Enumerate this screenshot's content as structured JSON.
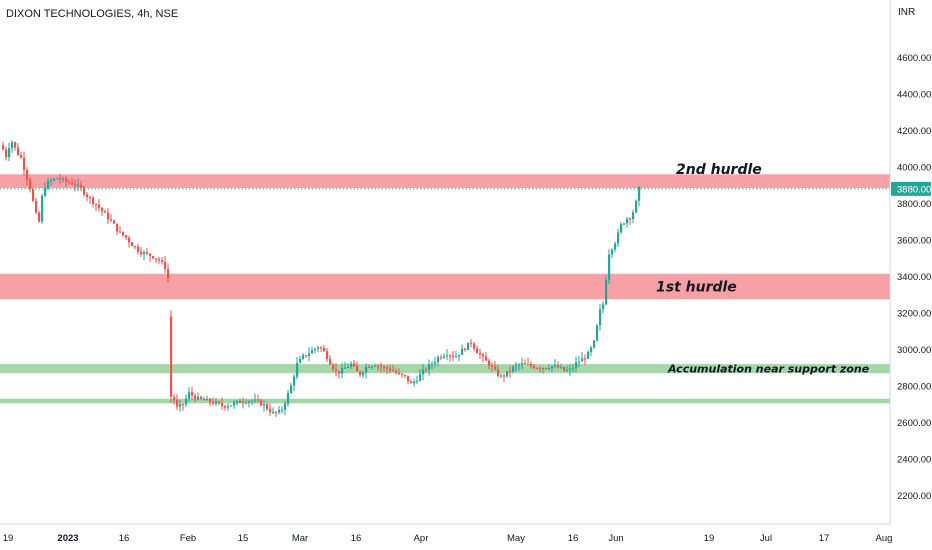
{
  "header": {
    "title": "DIXON TECHNOLOGIES, 4h, NSE"
  },
  "colors": {
    "up": "#26a69a",
    "down": "#ef5350",
    "resistance": "#f7a1a7",
    "support": "#a5d6a7",
    "price_tag": "#26a69a"
  },
  "chart_data": {
    "type": "candlestick",
    "currency": "INR",
    "y_ticks": [
      2200,
      2400,
      2600,
      2800,
      3000,
      3200,
      3400,
      3600,
      3800,
      4000,
      4200,
      4400,
      4600
    ],
    "y_tick_labels": [
      "2200.00",
      "2400.00",
      "2600.00",
      "2800.00",
      "3000.00",
      "3200.00",
      "3400.00",
      "3600.00",
      "3800.00",
      "4000.00",
      "4200.00",
      "4400.00",
      "4600.00"
    ],
    "x_tick_labels": [
      "19",
      "2023",
      "16",
      "Feb",
      "15",
      "Mar",
      "16",
      "Apr",
      "May",
      "16",
      "Jun",
      "19",
      "Jul",
      "17",
      "Aug"
    ],
    "current_price": 3880,
    "current_price_label": "3880.00",
    "zones": [
      {
        "kind": "resistance",
        "from": 3885,
        "to": 3960,
        "label": "2nd hurdle"
      },
      {
        "kind": "resistance",
        "from": 3275,
        "to": 3415,
        "label": "1st hurdle"
      },
      {
        "kind": "support",
        "from": 2870,
        "to": 2920,
        "label": "Accumulation near support zone"
      },
      {
        "kind": "support",
        "from": 2705,
        "to": 2730,
        "label": ""
      }
    ],
    "price_path": [
      [
        0,
        4120
      ],
      [
        5,
        4060
      ],
      [
        10,
        4150
      ],
      [
        16,
        4080
      ],
      [
        20,
        4050
      ],
      [
        26,
        3940
      ],
      [
        30,
        3870
      ],
      [
        34,
        3750
      ],
      [
        38,
        3700
      ],
      [
        42,
        3880
      ],
      [
        48,
        3920
      ],
      [
        56,
        3940
      ],
      [
        64,
        3920
      ],
      [
        72,
        3910
      ],
      [
        80,
        3880
      ],
      [
        88,
        3830
      ],
      [
        96,
        3790
      ],
      [
        104,
        3740
      ],
      [
        112,
        3690
      ],
      [
        118,
        3640
      ],
      [
        124,
        3620
      ],
      [
        130,
        3580
      ],
      [
        138,
        3540
      ],
      [
        146,
        3520
      ],
      [
        152,
        3510
      ],
      [
        158,
        3490
      ],
      [
        164,
        3450
      ],
      [
        166,
        3420
      ],
      [
        168,
        3360
      ],
      [
        170,
        3190
      ],
      [
        172,
        2740
      ],
      [
        176,
        2680
      ],
      [
        182,
        2700
      ],
      [
        188,
        2760
      ],
      [
        196,
        2730
      ],
      [
        204,
        2720
      ],
      [
        212,
        2710
      ],
      [
        222,
        2690
      ],
      [
        232,
        2700
      ],
      [
        242,
        2720
      ],
      [
        252,
        2720
      ],
      [
        262,
        2700
      ],
      [
        272,
        2650
      ],
      [
        280,
        2660
      ],
      [
        286,
        2740
      ],
      [
        290,
        2800
      ],
      [
        296,
        2920
      ],
      [
        302,
        2960
      ],
      [
        310,
        2990
      ],
      [
        318,
        3020
      ],
      [
        324,
        2980
      ],
      [
        330,
        2920
      ],
      [
        336,
        2870
      ],
      [
        342,
        2890
      ],
      [
        350,
        2920
      ],
      [
        358,
        2860
      ],
      [
        366,
        2910
      ],
      [
        374,
        2920
      ],
      [
        382,
        2900
      ],
      [
        390,
        2890
      ],
      [
        398,
        2860
      ],
      [
        404,
        2850
      ],
      [
        410,
        2810
      ],
      [
        416,
        2840
      ],
      [
        422,
        2880
      ],
      [
        430,
        2920
      ],
      [
        438,
        2960
      ],
      [
        446,
        2980
      ],
      [
        454,
        2960
      ],
      [
        462,
        3000
      ],
      [
        470,
        3040
      ],
      [
        476,
        2990
      ],
      [
        482,
        2950
      ],
      [
        488,
        2920
      ],
      [
        494,
        2880
      ],
      [
        500,
        2850
      ],
      [
        506,
        2870
      ],
      [
        512,
        2900
      ],
      [
        520,
        2920
      ],
      [
        530,
        2910
      ],
      [
        540,
        2900
      ],
      [
        550,
        2910
      ],
      [
        558,
        2900
      ],
      [
        564,
        2880
      ],
      [
        570,
        2890
      ],
      [
        576,
        2930
      ],
      [
        582,
        2950
      ],
      [
        588,
        2980
      ],
      [
        594,
        3050
      ],
      [
        598,
        3200
      ],
      [
        603,
        3260
      ],
      [
        607,
        3520
      ],
      [
        611,
        3560
      ],
      [
        615,
        3600
      ],
      [
        620,
        3680
      ],
      [
        626,
        3720
      ],
      [
        630,
        3730
      ],
      [
        634,
        3780
      ],
      [
        638,
        3880
      ]
    ]
  }
}
